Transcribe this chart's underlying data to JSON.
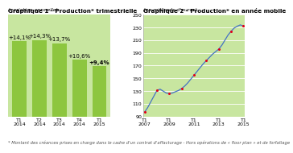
{
  "chart1": {
    "title": "Graphique 1 - Production* trimestrielle",
    "subtitle": "(variation annuelle)",
    "categories": [
      "T1\n2014",
      "T2\n2014",
      "T3\n2014",
      "T4\n2014",
      "T1\n2015"
    ],
    "values": [
      14.1,
      14.3,
      13.7,
      10.6,
      9.4
    ],
    "labels": [
      "+14,1%",
      "+14,3%",
      "+13,7%",
      "+10,6%",
      "+9,4%"
    ],
    "bar_color": "#8dc63f",
    "bg_color": "#c8e6a0",
    "border_color": "#a8d060"
  },
  "chart2": {
    "title": "Graphique 2 - Production* en année mobile",
    "subtitle": "(en milliards d'euros)",
    "xtick_labels": [
      "T1\n2007",
      "T1\n2009",
      "T1\n2011",
      "T1\n2013",
      "T1\n2015"
    ],
    "xtick_positions": [
      0,
      8,
      16,
      24,
      32
    ],
    "ylim": [
      90,
      250
    ],
    "yticks": [
      90,
      110,
      130,
      150,
      170,
      190,
      210,
      230,
      250
    ],
    "line_color": "#4472c4",
    "marker_color": "#e2001a",
    "bg_color": "#c8e6a0",
    "y_values": [
      97,
      104,
      113,
      122,
      131,
      133,
      130,
      127,
      126,
      127,
      129,
      131,
      134,
      138,
      143,
      149,
      155,
      161,
      167,
      173,
      178,
      183,
      188,
      192,
      196,
      202,
      210,
      218,
      224,
      229,
      232,
      234,
      232
    ],
    "marker_x": [
      0,
      4,
      8,
      12,
      16,
      20,
      24,
      28,
      32
    ]
  },
  "overall_bg": "#ffffff",
  "footnote": "* Montant des créances prises en charge dans le cadre d'un contrat d'affacturage - Hors opérations de « floor plan » et de forfaïtage",
  "title_fontsize": 5.2,
  "subtitle_fontsize": 4.5,
  "bar_label_fontsize": 5.0,
  "tick_fontsize": 4.5,
  "footnote_fontsize": 3.8
}
